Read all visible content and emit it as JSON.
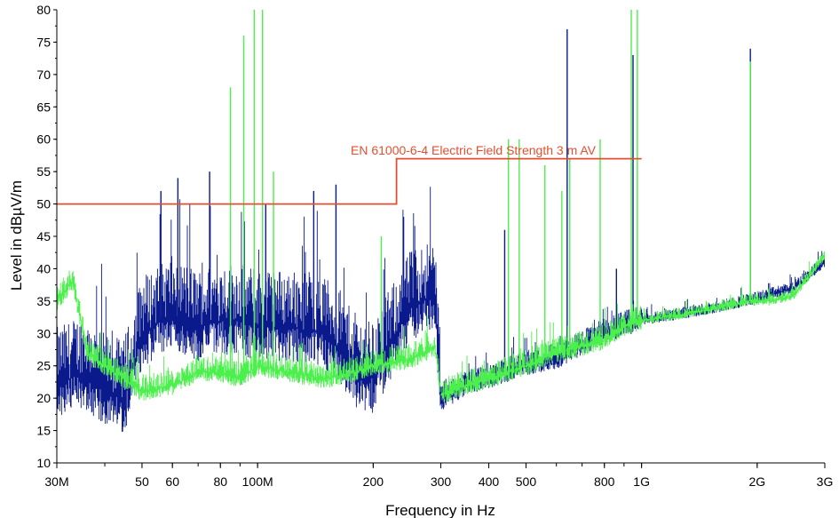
{
  "chart_data": {
    "type": "line",
    "xlabel": "Frequency in Hz",
    "ylabel": "Level in dBµV/m",
    "xscale": "log",
    "xlim": [
      30000000,
      3000000000
    ],
    "ylim": [
      10,
      80
    ],
    "grid": false,
    "legend": "none",
    "x_ticks": [
      {
        "value": 30000000,
        "label": "30M"
      },
      {
        "value": 50000000,
        "label": "50"
      },
      {
        "value": 60000000,
        "label": "60"
      },
      {
        "value": 80000000,
        "label": "80"
      },
      {
        "value": 100000000,
        "label": "100M"
      },
      {
        "value": 200000000,
        "label": "200"
      },
      {
        "value": 300000000,
        "label": "300"
      },
      {
        "value": 400000000,
        "label": "400"
      },
      {
        "value": 500000000,
        "label": "500"
      },
      {
        "value": 800000000,
        "label": "800"
      },
      {
        "value": 1000000000,
        "label": "1G"
      },
      {
        "value": 2000000000,
        "label": "2G"
      },
      {
        "value": 3000000000,
        "label": "3G"
      }
    ],
    "y_ticks": [
      10,
      15,
      20,
      25,
      30,
      35,
      40,
      45,
      50,
      55,
      60,
      65,
      70,
      75,
      80
    ],
    "limit_line": {
      "label": "EN 61000-6-4 Electric Field Strength 3 m AV",
      "color": "#e05030",
      "segments": [
        {
          "x": [
            30000000,
            230000000
          ],
          "y": 50
        },
        {
          "x": [
            230000000,
            1000000000
          ],
          "y": 57
        }
      ]
    },
    "series": [
      {
        "color": "#0a1a8c",
        "x": [
          30000000,
          35000000,
          40000000,
          45000000,
          50000000,
          60000000,
          70000000,
          80000000,
          90000000,
          100000000,
          120000000,
          150000000,
          180000000,
          200000000,
          250000000,
          290000000,
          300000000,
          350000000,
          400000000,
          500000000,
          600000000,
          700000000,
          800000000,
          900000000,
          1000000000,
          1300000000,
          1600000000,
          1900000000,
          2200000000,
          2500000000,
          3000000000
        ],
        "values": [
          22,
          24,
          21,
          20,
          30,
          33,
          31,
          32,
          32,
          31,
          31,
          30,
          24,
          23,
          34,
          36,
          19.5,
          22,
          23,
          25,
          26,
          28,
          30,
          31,
          32,
          33,
          34,
          35,
          36,
          37,
          41
        ],
        "peaks": [
          {
            "x": 56000000,
            "y": 52
          },
          {
            "x": 62000000,
            "y": 54
          },
          {
            "x": 75000000,
            "y": 55
          },
          {
            "x": 105000000,
            "y": 50
          },
          {
            "x": 140000000,
            "y": 52
          },
          {
            "x": 160000000,
            "y": 53
          },
          {
            "x": 240000000,
            "y": 48
          },
          {
            "x": 440000000,
            "y": 46
          },
          {
            "x": 640000000,
            "y": 77
          },
          {
            "x": 860000000,
            "y": 40
          },
          {
            "x": 950000000,
            "y": 73
          },
          {
            "x": 1920000000,
            "y": 74
          }
        ]
      },
      {
        "color": "#4cf04c",
        "x": [
          30000000,
          33000000,
          36000000,
          40000000,
          45000000,
          50000000,
          60000000,
          70000000,
          80000000,
          90000000,
          100000000,
          120000000,
          150000000,
          180000000,
          200000000,
          250000000,
          290000000,
          300000000,
          350000000,
          400000000,
          500000000,
          600000000,
          700000000,
          800000000,
          900000000,
          1000000000,
          1300000000,
          1600000000,
          1900000000,
          2200000000,
          2500000000,
          3000000000
        ],
        "values": [
          35,
          38,
          27,
          25,
          23,
          21,
          22,
          24,
          24,
          23,
          25,
          24,
          23,
          24,
          25,
          26,
          28,
          20.5,
          22,
          23,
          25,
          27,
          28,
          29,
          31,
          32,
          33,
          34,
          35,
          35,
          36,
          42
        ],
        "peaks": [
          {
            "x": 85000000,
            "y": 68
          },
          {
            "x": 92000000,
            "y": 76
          },
          {
            "x": 98000000,
            "y": 80
          },
          {
            "x": 103000000,
            "y": 80
          },
          {
            "x": 110000000,
            "y": 55
          },
          {
            "x": 210000000,
            "y": 45
          },
          {
            "x": 450000000,
            "y": 60
          },
          {
            "x": 480000000,
            "y": 60
          },
          {
            "x": 560000000,
            "y": 56
          },
          {
            "x": 620000000,
            "y": 52
          },
          {
            "x": 650000000,
            "y": 57
          },
          {
            "x": 780000000,
            "y": 60
          },
          {
            "x": 940000000,
            "y": 80
          },
          {
            "x": 975000000,
            "y": 80
          },
          {
            "x": 1920000000,
            "y": 72
          },
          {
            "x": 2150000000,
            "y": 37
          }
        ]
      }
    ]
  }
}
